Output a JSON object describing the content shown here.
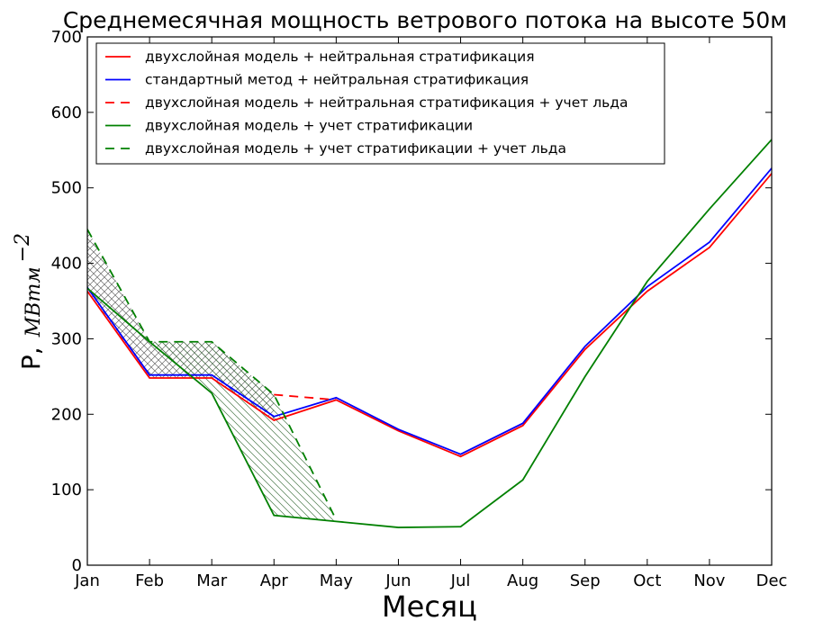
{
  "chart_data": {
    "type": "line",
    "title": "Среднемесячная мощность ветрового потока на высоте 50м",
    "xlabel": "Месяц",
    "ylabel": {
      "main": "P,",
      "unit": "МВтм",
      "exponent": "−2"
    },
    "categories": [
      "Jan",
      "Feb",
      "Mar",
      "Apr",
      "May",
      "Jun",
      "Jul",
      "Aug",
      "Sep",
      "Oct",
      "Nov",
      "Dec"
    ],
    "ylim": [
      0,
      700
    ],
    "yticks": [
      0,
      100,
      200,
      300,
      400,
      500,
      600,
      700
    ],
    "grid": false,
    "legend_position": "top-left",
    "series": [
      {
        "name": "двухслойная модель + нейтральная стратификация",
        "color": "#ff0000",
        "dash": false,
        "values": [
          363,
          248,
          248,
          192,
          219,
          178,
          144,
          185,
          286,
          363,
          421,
          519
        ]
      },
      {
        "name": "стандартный метод + нейтральная стратификация",
        "color": "#0000ff",
        "dash": false,
        "values": [
          368,
          252,
          252,
          197,
          222,
          180,
          147,
          188,
          290,
          369,
          428,
          526
        ]
      },
      {
        "name": "двухслойная модель + нейтральная стратификация + учет льда",
        "color": "#ff0000",
        "dash": true,
        "values": [
          null,
          null,
          null,
          226,
          219,
          null,
          null,
          null,
          null,
          null,
          null,
          null
        ]
      },
      {
        "name": "двухслойная модель + учет стратификации",
        "color": "#008000",
        "dash": false,
        "values": [
          367,
          296,
          228,
          66,
          58,
          50,
          51,
          113,
          250,
          376,
          472,
          564
        ]
      },
      {
        "name": "двухслойная модель + учет стратификации + учет льда",
        "color": "#008000",
        "dash": true,
        "values": [
          445,
          296,
          296,
          226,
          60,
          null,
          null,
          null,
          null,
          null,
          null,
          null
        ]
      }
    ],
    "shaded_regions": [
      {
        "between": [
          "двухслойная модель + нейтральная стратификация + учет льда",
          "двухслойная модель + нейтральная стратификация"
        ],
        "months": [
          "Jan",
          "Feb",
          "Mar",
          "Apr"
        ],
        "upper": [
          445,
          296,
          296,
          226
        ],
        "lower": [
          363,
          248,
          248,
          192
        ],
        "hatch": "crosshatch"
      },
      {
        "between": [
          "двухслойная модель + учет стратификации + учет льда",
          "двухслойная модель + учет стратификации"
        ],
        "months": [
          "Feb",
          "Mar",
          "Apr",
          "May"
        ],
        "upper": [
          296,
          296,
          226,
          60
        ],
        "lower": [
          296,
          228,
          66,
          58
        ],
        "hatch": "diagonal"
      }
    ]
  }
}
